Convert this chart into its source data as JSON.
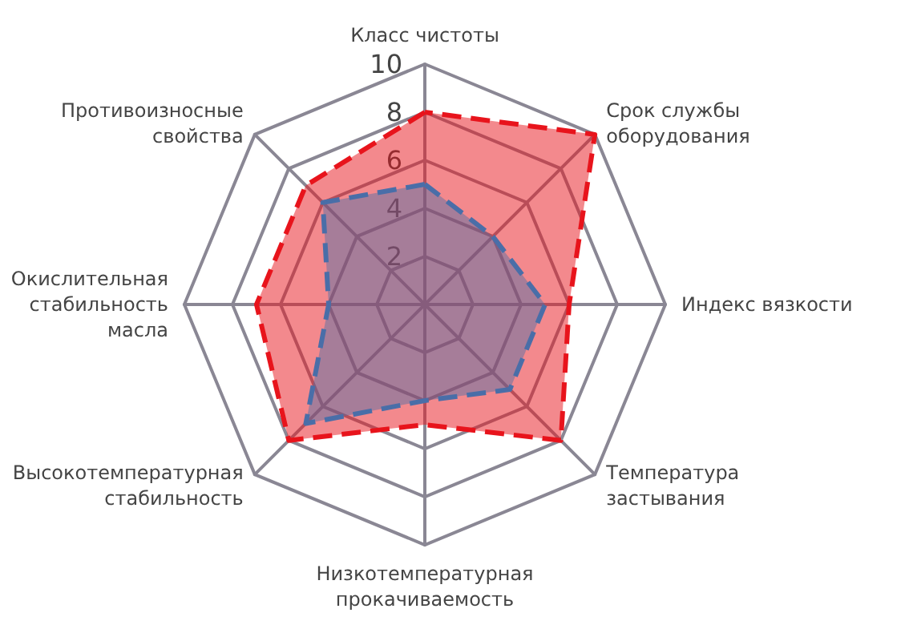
{
  "chart_data": {
    "type": "radar",
    "categories": [
      "Класс чистоты",
      "Срок службы оборудования",
      "Индекс вязкости",
      "Температура застывания",
      "Низкотемпературная прокачиваемость",
      "Высокотемпературная стабильность",
      "Окислительная стабильность масла",
      "Противоизносные свойства"
    ],
    "series": [
      {
        "color": "#e8141c",
        "values": [
          8,
          10,
          6,
          8,
          5,
          8,
          7,
          7
        ]
      },
      {
        "color": "#4a6ea8",
        "values": [
          5,
          4,
          5,
          5,
          4,
          7,
          4,
          6
        ]
      }
    ],
    "ylim": [
      0,
      10
    ],
    "yticks": [
      2,
      4,
      6,
      8,
      10
    ],
    "marker": "none",
    "line_style": "dashed"
  }
}
